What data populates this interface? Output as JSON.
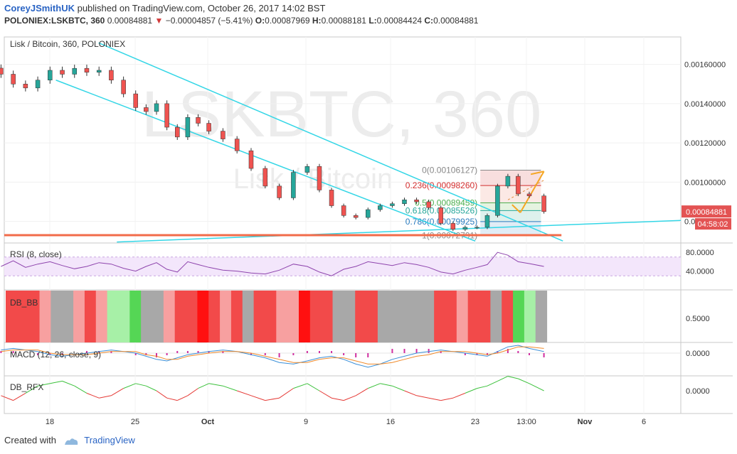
{
  "header": {
    "author": "CoreyJSmithUK",
    "published_text": "published on TradingView.com, October 26, 2017 14:02 BST",
    "symbol": "POLONIEX:LSKBTC, 360",
    "last": "0.00084881",
    "change": "−0.00004857 (−5.41%)",
    "o_label": "O:",
    "o": "0.00087969",
    "h_label": "H:",
    "h": "0.00088181",
    "l_label": "L:",
    "l": "0.00084424",
    "c_label": "C:",
    "c": "0.00084881"
  },
  "footer": {
    "created_with": "Created with",
    "brand": "TradingView"
  },
  "chart_data": {
    "type": "candlestick",
    "title": "Lisk / Bitcoin, 360, POLONIEX",
    "watermark_main": "LSKBTC, 360",
    "watermark_sub": "Lisk / Bitcoin",
    "ylim": [
      0.00069,
      0.00174
    ],
    "y_ticks": [
      "0.00160000",
      "0.00140000",
      "0.00120000",
      "0.00100000",
      "0.00080000"
    ],
    "x_ticks": [
      "18",
      "25",
      "Oct",
      "9",
      "16",
      "23",
      "13:00",
      "Nov",
      "6"
    ],
    "x_tick_dates": [
      "2017-09-18",
      "2017-09-25",
      "2017-10-02",
      "2017-10-09",
      "2017-10-16",
      "2017-10-23",
      "2017-10-28",
      "2017-11-01",
      "2017-11-06"
    ],
    "close_series": [
      0.00155,
      0.0015,
      0.00148,
      0.00152,
      0.00157,
      0.00155,
      0.00158,
      0.00156,
      0.00157,
      0.00152,
      0.00145,
      0.00138,
      0.00136,
      0.0014,
      0.00128,
      0.00123,
      0.00133,
      0.0013,
      0.00126,
      0.00122,
      0.00116,
      0.00107,
      0.00098,
      0.00092,
      0.00105,
      0.00108,
      0.00096,
      0.00088,
      0.00083,
      0.00082,
      0.00086,
      0.00088,
      0.00089,
      0.00091,
      0.0009,
      0.00087,
      0.00079,
      0.00076,
      0.00077,
      0.00077,
      0.00083,
      0.00098,
      0.00103,
      0.00094,
      0.00093,
      0.00085
    ],
    "price_label": "0.00084881",
    "countdown": "04:58:02",
    "fib_levels": [
      {
        "label": "0(0.00106127)",
        "value": 0.00106127,
        "color": "#888888"
      },
      {
        "label": "0.236(0.00098260)",
        "value": 0.0009826,
        "color": "#d32f2f"
      },
      {
        "label": "0.5(0.00089459)",
        "value": 0.00089459,
        "color": "#4caf50"
      },
      {
        "label": "0.618(0.00085526)",
        "value": 0.00085526,
        "color": "#26a69a"
      },
      {
        "label": "0.786(0.00079925)",
        "value": 0.00079925,
        "color": "#2a7bbf"
      },
      {
        "label": "1(0.00072791)",
        "value": 0.00072791,
        "color": "#888888"
      }
    ],
    "support_level": 0.00073,
    "panes": [
      {
        "name": "RSI (8, close)",
        "ticks": [
          "80.0000",
          "40.0000"
        ],
        "ylim": [
          0,
          100
        ],
        "band": [
          30,
          70
        ]
      },
      {
        "name": "DB_BB",
        "ticks": [
          "0.5000"
        ],
        "blocks": [
          "red",
          "red",
          "red",
          "pink",
          "grey",
          "grey",
          "pink",
          "red",
          "pink",
          "lightgreen",
          "lightgreen",
          "green",
          "grey",
          "grey",
          "pink",
          "red",
          "red",
          "darkred",
          "red",
          "pink",
          "red",
          "grey",
          "red",
          "red",
          "pink",
          "pink",
          "darkred",
          "red",
          "red",
          "grey",
          "grey",
          "red",
          "red",
          "grey",
          "grey",
          "grey",
          "grey",
          "grey",
          "red",
          "red",
          "pink",
          "red",
          "red",
          "grey",
          "red",
          "green",
          "lightgreen",
          "grey"
        ]
      },
      {
        "name": "MACD (12, 26, close, 9)",
        "ticks": [
          "0.0000"
        ]
      },
      {
        "name": "DB_RFX",
        "ticks": [
          "0.0000"
        ]
      }
    ],
    "colors": {
      "bull": "#26a69a",
      "bear": "#ef5350",
      "channel": "#33d6e6",
      "support": "#f26b4a",
      "price_tag": "#e35353"
    }
  }
}
